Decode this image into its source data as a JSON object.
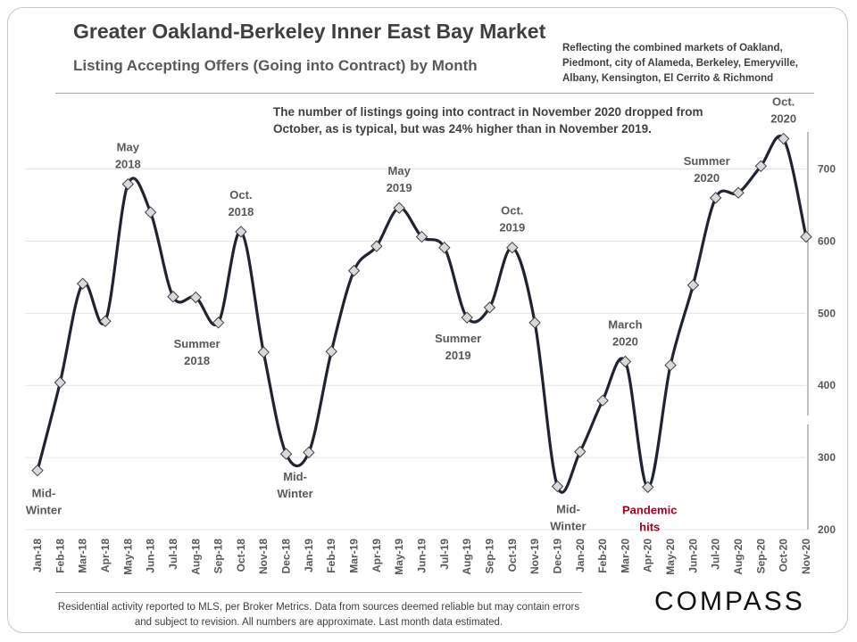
{
  "title": "Greater Oakland-Berkeley Inner East Bay Market",
  "subtitle": "Listing Accepting Offers (Going into Contract) by Month",
  "note": "Reflecting the combined markets of Oakland, Piedmont, city of Alameda, Berkeley, Emeryville, Albany, Kensington, El Cerrito & Richmond",
  "annotation": "The number of listings going into contract in November 2020 dropped from October, as is typical, but was 24% higher than in November 2019.",
  "footnote": "Residential activity reported to MLS, per Broker Metrics. Data from sources deemed reliable but may contain errors and subject to revision. All numbers are approximate. Last month data estimated.",
  "logo": "COMPASS",
  "colors": {
    "line": "#1f2433",
    "marker_fill": "#d9d9d9",
    "marker_stroke": "#404040",
    "grid": "#e4e4e4",
    "highlight": "#a50021"
  },
  "chart_data": {
    "type": "line",
    "title": "Listing Accepting Offers (Going into Contract) by Month",
    "xlabel": "",
    "ylabel": "",
    "categories": [
      "Jan-18",
      "Feb-18",
      "Mar-18",
      "Apr-18",
      "May-18",
      "Jun-18",
      "Jul-18",
      "Aug-18",
      "Sep-18",
      "Oct-18",
      "Nov-18",
      "Dec-18",
      "Jan-19",
      "Feb-19",
      "Mar-19",
      "Apr-19",
      "May-19",
      "Jun-19",
      "Jul-19",
      "Aug-19",
      "Sep-19",
      "Oct-19",
      "Nov-19",
      "Dec-19",
      "Jan-20",
      "Feb-20",
      "Mar-20",
      "Apr-20",
      "May-20",
      "Jun-20",
      "Jul-20",
      "Aug-20",
      "Sep-20",
      "Oct-20",
      "Nov-20"
    ],
    "values": [
      282,
      404,
      541,
      489,
      679,
      640,
      523,
      522,
      487,
      613,
      446,
      305,
      307,
      447,
      559,
      593,
      646,
      606,
      591,
      494,
      508,
      591,
      487,
      260,
      308,
      379,
      433,
      259,
      428,
      539,
      660,
      667,
      704,
      742,
      606
    ],
    "ylim": [
      200,
      760
    ],
    "yticks": [
      200,
      300,
      400,
      500,
      600,
      700
    ],
    "grid": true,
    "y_axis_side": "right",
    "legend": "none",
    "annotations": [
      {
        "index": 0,
        "lines": [
          "Mid-",
          "Winter"
        ],
        "pos": "below"
      },
      {
        "index": 4,
        "lines": [
          "May",
          "2018"
        ],
        "pos": "above"
      },
      {
        "index": 8,
        "lines": [
          "Summer",
          "2018"
        ],
        "pos": "below"
      },
      {
        "index": 9,
        "lines": [
          "Oct.",
          "2018"
        ],
        "pos": "above"
      },
      {
        "index": 11,
        "lines": [
          "Mid-",
          "Winter"
        ],
        "pos": "below"
      },
      {
        "index": 16,
        "lines": [
          "May",
          "2019"
        ],
        "pos": "above"
      },
      {
        "index": 19,
        "lines": [
          "Summer",
          "2019"
        ],
        "pos": "below"
      },
      {
        "index": 21,
        "lines": [
          "Oct.",
          "2019"
        ],
        "pos": "above"
      },
      {
        "index": 23,
        "lines": [
          "Mid-",
          "Winter"
        ],
        "pos": "below"
      },
      {
        "index": 26,
        "lines": [
          "March",
          "2020"
        ],
        "pos": "above"
      },
      {
        "index": 27,
        "lines": [
          "Pandemic",
          "hits"
        ],
        "pos": "below",
        "highlight": true
      },
      {
        "index": 30,
        "lines": [
          "Summer",
          "2020"
        ],
        "pos": "above"
      },
      {
        "index": 33,
        "lines": [
          "Oct.",
          "2020"
        ],
        "pos": "above"
      }
    ]
  }
}
